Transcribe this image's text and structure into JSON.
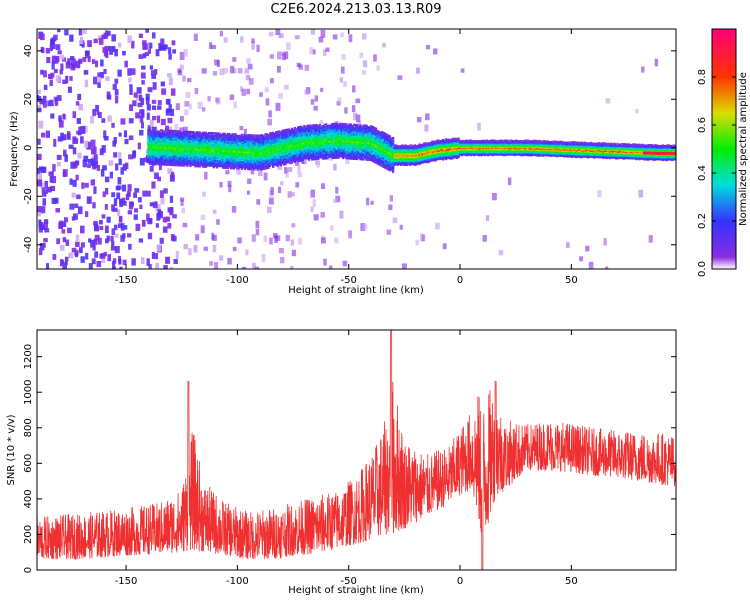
{
  "title": "C2E6.2024.213.03.13.R09",
  "chart_data": [
    {
      "type": "heatmap",
      "xlabel": "Height of straight line (km)",
      "ylabel": "Frequency (Hz)",
      "xlim": [
        -190,
        97
      ],
      "ylim": [
        -50,
        49
      ],
      "xticks": [
        -150,
        -100,
        -50,
        0,
        50
      ],
      "yticks": [
        -40,
        -20,
        0,
        20,
        40
      ],
      "grid": false,
      "colorbar": {
        "label": "Normalized spectral amplitude",
        "range": [
          0.0,
          1.0
        ],
        "ticks": [
          0.0,
          0.2,
          0.4,
          0.6,
          0.8
        ]
      },
      "ridge": {
        "description_points": [
          [
            -130,
            0
          ],
          [
            -110,
            -1
          ],
          [
            -90,
            -2
          ],
          [
            -70,
            2
          ],
          [
            -55,
            3
          ],
          [
            -40,
            2
          ],
          [
            -30,
            -3
          ],
          [
            -20,
            -3
          ],
          [
            -10,
            -1
          ],
          [
            0,
            0
          ],
          [
            10,
            0
          ],
          [
            30,
            0
          ],
          [
            60,
            -1
          ],
          [
            90,
            -2
          ]
        ]
      }
    },
    {
      "type": "line",
      "xlabel": "Height of straight line (km)",
      "ylabel": "SNR (10 * v/v)",
      "xlim": [
        -190,
        97
      ],
      "ylim": [
        0,
        1350
      ],
      "xticks": [
        -150,
        -100,
        -50,
        0,
        50
      ],
      "yticks": [
        0,
        200,
        400,
        600,
        800,
        1000,
        1200
      ],
      "color": "#f03030",
      "envelope": {
        "x": [
          -190,
          -170,
          -150,
          -135,
          -125,
          -120,
          -115,
          -105,
          -95,
          -85,
          -75,
          -65,
          -55,
          -45,
          -38,
          -32,
          -30,
          -25,
          -15,
          -5,
          0,
          5,
          8,
          10,
          15,
          20,
          30,
          40,
          50,
          60,
          70,
          80,
          90,
          97
        ],
        "low": [
          60,
          60,
          80,
          90,
          100,
          110,
          100,
          80,
          60,
          60,
          80,
          90,
          120,
          150,
          180,
          200,
          200,
          230,
          300,
          370,
          420,
          450,
          300,
          100,
          380,
          450,
          560,
          560,
          550,
          530,
          520,
          500,
          480,
          470
        ],
        "high": [
          300,
          320,
          350,
          380,
          460,
          800,
          500,
          380,
          330,
          350,
          380,
          420,
          450,
          560,
          700,
          900,
          1100,
          750,
          650,
          700,
          800,
          900,
          1000,
          950,
          1050,
          850,
          820,
          850,
          830,
          800,
          790,
          780,
          780,
          760
        ]
      },
      "spikes": [
        {
          "x": -122,
          "y": 1060
        },
        {
          "x": -31,
          "y": 1350
        },
        {
          "x": 16,
          "y": 1060
        },
        {
          "x": 10,
          "y": 0
        }
      ]
    }
  ]
}
